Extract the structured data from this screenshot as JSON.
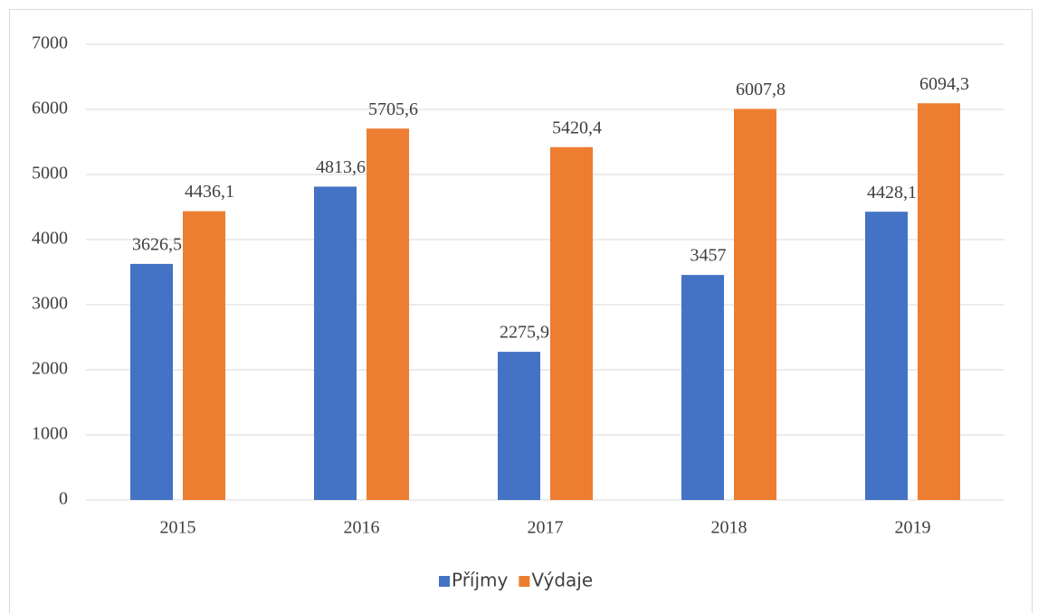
{
  "chart_data": {
    "type": "bar",
    "categories": [
      "2015",
      "2016",
      "2017",
      "2018",
      "2019"
    ],
    "series": [
      {
        "name": "Příjmy",
        "color": "#4472c4",
        "values": [
          3626.5,
          4813.6,
          2275.9,
          3457,
          4428.1
        ],
        "value_labels": [
          "3626,5",
          "4813,6",
          "2275,9",
          "3457",
          "4428,1"
        ]
      },
      {
        "name": "Výdaje",
        "color": "#ed7d31",
        "values": [
          4436.1,
          5705.6,
          5420.4,
          6007.8,
          6094.3
        ],
        "value_labels": [
          "4436,1",
          "5705,6",
          "5420,4",
          "6007,8",
          "6094,3"
        ]
      }
    ],
    "ylim": [
      0,
      7000
    ],
    "yticks": [
      0,
      1000,
      2000,
      3000,
      4000,
      5000,
      6000,
      7000
    ],
    "grid": true,
    "legend": "bottom"
  }
}
